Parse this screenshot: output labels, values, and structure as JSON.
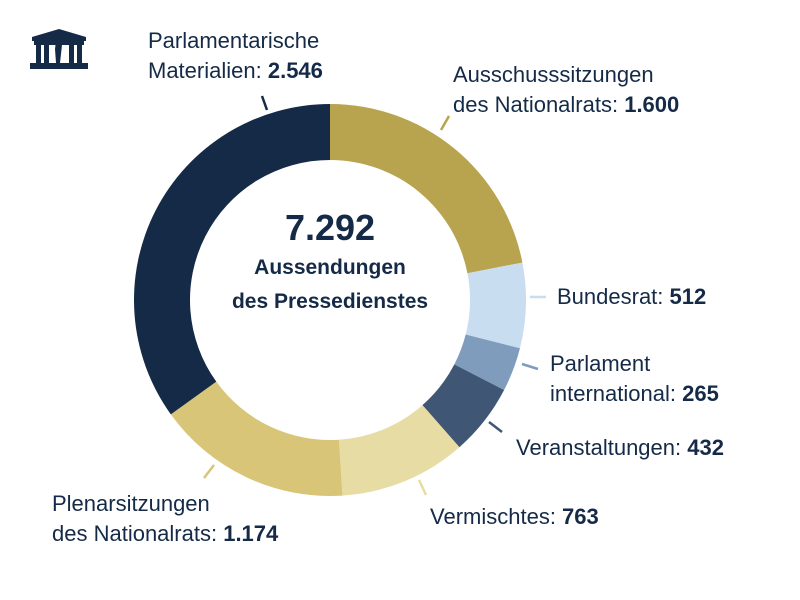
{
  "chart_data": {
    "type": "pie",
    "donut": true,
    "total": "7.292",
    "center_label": [
      "Aussendungen",
      "des Pressedienstes"
    ],
    "slices": [
      {
        "name": "Ausschusssitzungen des Nationalrats",
        "label_lines": [
          "Ausschusssitzungen",
          "des Nationalrats: "
        ],
        "value": 1600,
        "value_label": "1.600",
        "color": "#b8a44f"
      },
      {
        "name": "Bundesrat",
        "label_lines": [
          "Bundesrat: "
        ],
        "value": 512,
        "value_label": "512",
        "color": "#c9ddf1"
      },
      {
        "name": "Parlament international",
        "label_lines": [
          "Parlament",
          "international: "
        ],
        "value": 265,
        "value_label": "265",
        "color": "#7f9cbc"
      },
      {
        "name": "Veranstaltungen",
        "label_lines": [
          "Veranstaltungen: "
        ],
        "value": 432,
        "value_label": "432",
        "color": "#3f5775"
      },
      {
        "name": "Vermischtes",
        "label_lines": [
          "Vermischtes: "
        ],
        "value": 763,
        "value_label": "763",
        "color": "#e8dca5"
      },
      {
        "name": "Plenarsitzungen des Nationalrats",
        "label_lines": [
          "Plenarsitzungen",
          "des Nationalrats: "
        ],
        "value": 1174,
        "value_label": "1.174",
        "color": "#d8c577"
      },
      {
        "name": "Parlamentarische Materialien",
        "label_lines": [
          "Parlamentarische",
          "Materialien: "
        ],
        "value": 2546,
        "value_label": "2.546",
        "color": "#152a47"
      }
    ]
  },
  "logo": {
    "icon": "parliament-building-icon",
    "color": "#152a47"
  }
}
